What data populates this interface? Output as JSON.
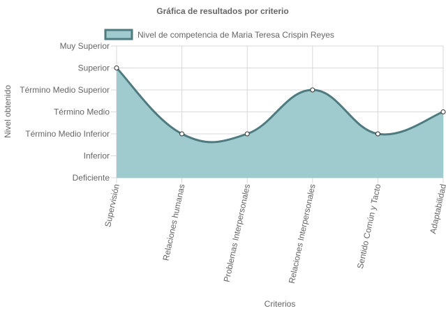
{
  "chart_data": {
    "type": "area",
    "title": "Gráfica de resultados por criterio",
    "xlabel": "Criterios",
    "ylabel": "Nivel obtenido",
    "categories": [
      "Supervisión",
      "Relaciones humanas",
      "Problemas Interpersonales",
      "Relaciones Interpersonales",
      "Sentido Común y Tacto",
      "Adaptabilidad"
    ],
    "y_levels": [
      "Deficiente",
      "Inferior",
      "Término Medio Inferior",
      "Término Medio",
      "Término Medio Superior",
      "Superior",
      "Muy Superior"
    ],
    "ylim": [
      0,
      6
    ],
    "series": [
      {
        "name": "Nivel de competencia de Maria Teresa Crispin Reyes",
        "values": [
          5,
          2,
          2,
          4,
          2,
          3
        ]
      }
    ],
    "colors": {
      "fill": "#9fcbce",
      "line": "#4f7b80",
      "grid": "#d9d9d9",
      "text": "#666666"
    },
    "grid": true,
    "legend_position": "top"
  }
}
